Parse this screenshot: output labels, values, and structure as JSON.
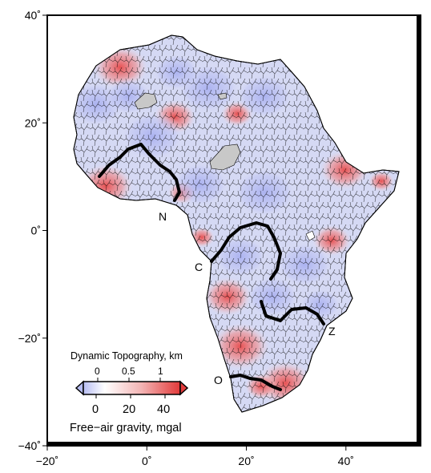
{
  "map": {
    "x_ticks": [
      {
        "value": -20,
        "label": "−20˚"
      },
      {
        "value": 0,
        "label": "0˚"
      },
      {
        "value": 20,
        "label": "20˚"
      },
      {
        "value": 40,
        "label": "40˚"
      }
    ],
    "y_ticks": [
      {
        "value": 40,
        "label": "40˚"
      },
      {
        "value": 20,
        "label": "20˚"
      },
      {
        "value": 0,
        "label": "0˚"
      },
      {
        "value": -20,
        "label": "−20˚"
      },
      {
        "value": -40,
        "label": "−40˚"
      }
    ],
    "x_range": [
      -20,
      55
    ],
    "y_range": [
      -40,
      40
    ],
    "river_labels": {
      "niger": "N",
      "congo": "C",
      "zambezi": "Z",
      "orange": "O"
    },
    "colors": {
      "ocean": "#ffffff",
      "low": "#b9bff2",
      "neutral": "#f8eeee",
      "high": "#e84848",
      "lake": "#c4c4c4",
      "river": "#000000"
    }
  },
  "legend": {
    "title": "Dynamic Topography, km",
    "top_ticks": [
      "0",
      "0.5",
      "1"
    ],
    "bottom_ticks": [
      "0",
      "20",
      "40"
    ],
    "bottom_label": "Free−air gravity, mgal",
    "colorbar_stops": [
      "#b7bdf2",
      "#ffffff",
      "#f3b4b4",
      "#e23a3a"
    ]
  }
}
